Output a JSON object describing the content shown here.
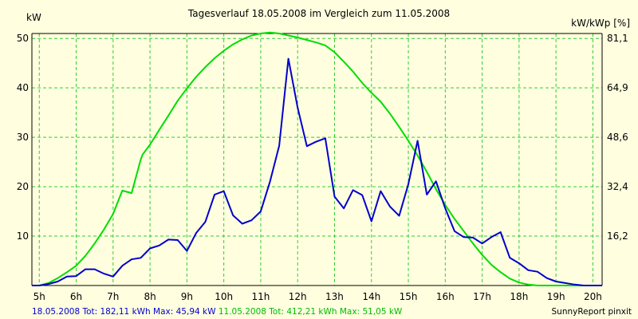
{
  "chart_data": {
    "type": "line",
    "title": "Tagesverlauf 18.05.2008 im Vergleich zum 11.05.2008",
    "ylabel_left": "kW",
    "ylabel_right": "kW/kWp [%]",
    "x_ticks": [
      "5h",
      "6h",
      "7h",
      "8h",
      "9h",
      "10h",
      "11h",
      "12h",
      "13h",
      "14h",
      "15h",
      "16h",
      "17h",
      "18h",
      "19h",
      "20h"
    ],
    "xlim": [
      4.8,
      20.25
    ],
    "ylim": [
      0,
      51
    ],
    "y_ticks": [
      10,
      20,
      30,
      40,
      50
    ],
    "y_right_ticks": [
      "16,2",
      "32,4",
      "48,6",
      "64,9",
      "81,1"
    ],
    "grid": true,
    "series": [
      {
        "name": "18.05.2008",
        "color": "#0000cc",
        "x": [
          4.8,
          5.0,
          5.25,
          5.5,
          5.75,
          6.0,
          6.25,
          6.5,
          6.75,
          7.0,
          7.25,
          7.5,
          7.75,
          8.0,
          8.25,
          8.5,
          8.75,
          9.0,
          9.25,
          9.5,
          9.75,
          10.0,
          10.25,
          10.5,
          10.75,
          11.0,
          11.25,
          11.5,
          11.75,
          12.0,
          12.25,
          12.5,
          12.75,
          13.0,
          13.25,
          13.5,
          13.75,
          14.0,
          14.25,
          14.5,
          14.75,
          15.0,
          15.25,
          15.5,
          15.75,
          16.0,
          16.25,
          16.5,
          16.75,
          17.0,
          17.25,
          17.5,
          17.75,
          18.0,
          18.25,
          18.5,
          18.75,
          19.0,
          19.25,
          19.5,
          19.75,
          20.0,
          20.25
        ],
        "values": [
          0,
          0,
          0.3,
          0.8,
          1.8,
          1.9,
          3.3,
          3.3,
          2.4,
          1.8,
          4.0,
          5.3,
          5.6,
          7.5,
          8.1,
          9.3,
          9.2,
          7.0,
          10.6,
          12.9,
          18.4,
          19.1,
          14.2,
          12.5,
          13.2,
          15.0,
          21.0,
          28.3,
          45.9,
          36.0,
          28.2,
          29.1,
          29.8,
          18.0,
          15.6,
          19.3,
          18.3,
          13.0,
          19.1,
          16.0,
          14.1,
          20.5,
          29.3,
          18.4,
          21.1,
          15.6,
          11.0,
          9.8,
          9.7,
          8.5,
          9.8,
          10.8,
          5.6,
          4.5,
          3.1,
          2.8,
          1.5,
          0.8,
          0.5,
          0.2,
          0,
          0,
          0
        ]
      },
      {
        "name": "11.05.2008",
        "color": "#00dd00",
        "x": [
          4.8,
          5.0,
          5.25,
          5.5,
          5.75,
          6.0,
          6.25,
          6.5,
          6.75,
          7.0,
          7.25,
          7.5,
          7.75,
          7.8,
          8.0,
          8.25,
          8.5,
          8.75,
          9.0,
          9.25,
          9.5,
          9.75,
          10.0,
          10.25,
          10.5,
          10.75,
          11.0,
          11.25,
          11.5,
          11.75,
          12.0,
          12.25,
          12.5,
          12.75,
          13.0,
          13.25,
          13.5,
          13.75,
          14.0,
          14.25,
          14.5,
          14.75,
          15.0,
          15.25,
          15.5,
          15.75,
          16.0,
          16.25,
          16.5,
          16.75,
          17.0,
          17.25,
          17.5,
          17.75,
          18.0,
          18.25,
          18.5,
          18.75,
          19.0,
          19.25,
          19.5,
          19.75,
          20.0,
          20.25
        ],
        "values": [
          0,
          0,
          0.5,
          1.5,
          2.7,
          4.0,
          6.0,
          8.5,
          11.3,
          14.5,
          19.2,
          18.7,
          25.5,
          26.5,
          28.5,
          31.5,
          34.4,
          37.4,
          39.9,
          42.2,
          44.2,
          46.0,
          47.5,
          48.8,
          49.8,
          50.6,
          51.0,
          51.2,
          51.0,
          50.6,
          50.2,
          49.7,
          49.2,
          48.6,
          47.2,
          45.3,
          43.3,
          41.0,
          39.0,
          37.2,
          34.8,
          32.1,
          29.3,
          26.3,
          23.0,
          19.5,
          16.3,
          13.5,
          11.0,
          8.5,
          6.2,
          4.2,
          2.7,
          1.4,
          0.6,
          0.2,
          0,
          0,
          0,
          0,
          0,
          0,
          0,
          0
        ]
      }
    ]
  },
  "footer": {
    "series1_summary": "18.05.2008 Tot: 182,11 kWh Max: 45,94 kW",
    "series2_summary": "11.05.2008 Tot: 412,21 kWh Max: 51,05 kW",
    "credit": "SunnyReport pinxit"
  }
}
